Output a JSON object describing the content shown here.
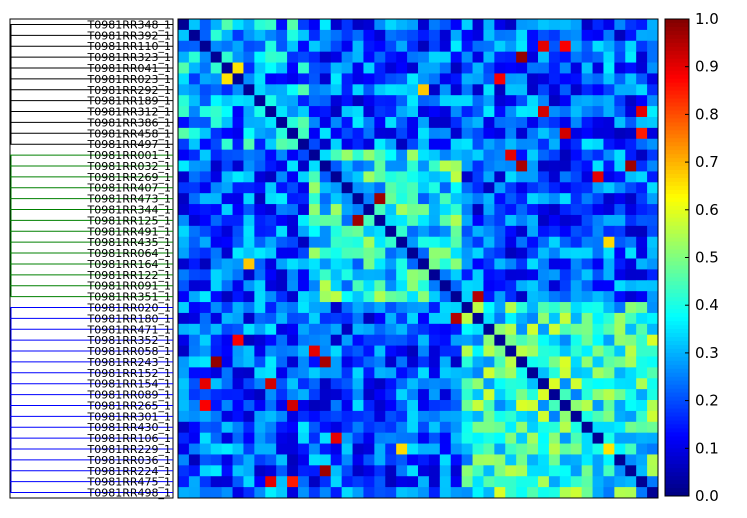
{
  "chart_data": {
    "type": "heatmap",
    "title": "",
    "xlabel": "",
    "ylabel": "",
    "colormap": "jet",
    "colorbar": {
      "vmin": 0.0,
      "vmax": 1.0,
      "ticks": [
        "0.0",
        "0.1",
        "0.2",
        "0.3",
        "0.4",
        "0.5",
        "0.6",
        "0.7",
        "0.8",
        "0.9",
        "1.0"
      ]
    },
    "row_labels": [
      "T0981RR348_1",
      "T0981RR392_1",
      "T0981RR110_1",
      "T0981RR323_1",
      "T0981RR041_1",
      "T0981RR023_1",
      "T0981RR292_1",
      "T0981RR189_1",
      "T0981RR312_1",
      "T0981RR386_1",
      "T0981RR458_1",
      "T0981RR497_1",
      "T0981RR001_1",
      "T0981RR032_1",
      "T0981RR269_1",
      "T0981RR407_1",
      "T0981RR473_1",
      "T0981RR344_1",
      "T0981RR125_1",
      "T0981RR491_1",
      "T0981RR435_1",
      "T0981RR064_1",
      "T0981RR164_1",
      "T0981RR122_1",
      "T0981RR091_1",
      "T0981RR351_1",
      "T0981RR020_1",
      "T0981RR180_1",
      "T0981RR471_1",
      "T0981RR352_1",
      "T0981RR058_1",
      "T0981RR243_1",
      "T0981RR152_1",
      "T0981RR154_1",
      "T0981RR089_1",
      "T0981RR265_1",
      "T0981RR301_1",
      "T0981RR430_1",
      "T0981RR106_1",
      "T0981RR229_1",
      "T0981RR036_1",
      "T0981RR224_1",
      "T0981RR475_1",
      "T0981RR498_1"
    ],
    "dendrogram_groups": [
      {
        "rows": [
          0,
          11
        ],
        "color": "#000000"
      },
      {
        "rows": [
          12,
          25
        ],
        "color": "#008000"
      },
      {
        "rows": [
          26,
          43
        ],
        "color": "#0000ff"
      }
    ],
    "clusters": [
      {
        "rows": [
          0,
          11
        ],
        "base": 0.25
      },
      {
        "rows": [
          12,
          25
        ],
        "base": 0.35
      },
      {
        "rows": [
          26,
          43
        ],
        "base": 0.38
      }
    ],
    "hotspots": [
      {
        "r": 3,
        "c": 31,
        "v": 0.98
      },
      {
        "r": 13,
        "c": 41,
        "v": 0.97
      },
      {
        "r": 18,
        "c": 16,
        "v": 0.97
      },
      {
        "r": 27,
        "c": 25,
        "v": 0.95
      },
      {
        "r": 31,
        "c": 13,
        "v": 0.96
      },
      {
        "r": 30,
        "c": 12,
        "v": 0.9
      },
      {
        "r": 33,
        "c": 2,
        "v": 0.9
      },
      {
        "r": 33,
        "c": 8,
        "v": 0.92
      },
      {
        "r": 35,
        "c": 10,
        "v": 0.92
      },
      {
        "r": 35,
        "c": 2,
        "v": 0.88
      },
      {
        "r": 38,
        "c": 14,
        "v": 0.9
      },
      {
        "r": 42,
        "c": 8,
        "v": 0.9
      },
      {
        "r": 42,
        "c": 10,
        "v": 0.85
      },
      {
        "r": 29,
        "c": 5,
        "v": 0.88
      },
      {
        "r": 6,
        "c": 22,
        "v": 0.68
      },
      {
        "r": 5,
        "c": 4,
        "v": 0.65
      },
      {
        "r": 20,
        "c": 39,
        "v": 0.66
      },
      {
        "r": 39,
        "c": 39,
        "v": 0.65
      }
    ]
  }
}
